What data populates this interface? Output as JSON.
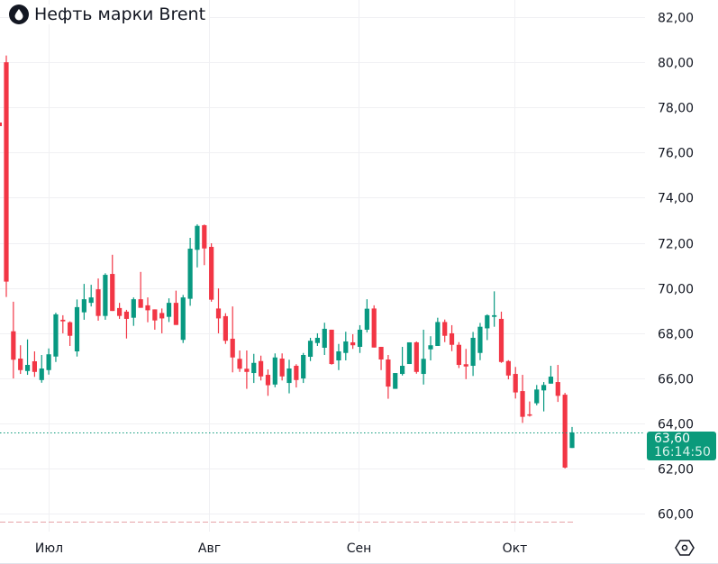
{
  "title": "Нефть марки Brent",
  "icons": {
    "title": "oil-drop-icon",
    "settings": "hexagon-settings-icon"
  },
  "last_price": {
    "value": "63,60",
    "countdown": "16:14:50"
  },
  "colors": {
    "up": "#089981",
    "down": "#f23645",
    "tag": "#0b9a7b",
    "grid": "#f0f0f3"
  },
  "chart_data": {
    "type": "candlestick",
    "title": "Нефть марки Brent",
    "ylim": [
      59.2,
      82.6
    ],
    "y_ticks": [
      60,
      62,
      64,
      66,
      68,
      70,
      72,
      74,
      76,
      78,
      80,
      82
    ],
    "y_tick_labels": [
      "60,00",
      "62,00",
      "64,00",
      "66,00",
      "68,00",
      "70,00",
      "72,00",
      "74,00",
      "76,00",
      "78,00",
      "80,00",
      "82,00"
    ],
    "x_labels": [
      {
        "label": "Июл",
        "index": 6
      },
      {
        "label": "Авг",
        "index": 28.7
      },
      {
        "label": "Сен",
        "index": 49.8
      },
      {
        "label": "Окт",
        "index": 71.8
      }
    ],
    "grid": true,
    "ohlc": [
      [
        80.0,
        80.3,
        69.6,
        70.28
      ],
      [
        68.08,
        69.39,
        65.99,
        66.82
      ],
      [
        66.87,
        67.46,
        66.19,
        66.36
      ],
      [
        66.32,
        67.72,
        66.15,
        66.59
      ],
      [
        66.75,
        67.19,
        66.06,
        66.28
      ],
      [
        65.92,
        67.03,
        65.8,
        66.43
      ],
      [
        66.36,
        67.32,
        66.16,
        67.06
      ],
      [
        66.96,
        68.9,
        66.72,
        68.83
      ],
      [
        68.59,
        68.79,
        67.99,
        68.52
      ],
      [
        68.48,
        68.52,
        67.43,
        67.88
      ],
      [
        67.19,
        69.49,
        66.96,
        69.15
      ],
      [
        68.92,
        70.18,
        68.59,
        69.5
      ],
      [
        69.34,
        70.14,
        69.18,
        69.58
      ],
      [
        69.94,
        70.42,
        68.55,
        68.76
      ],
      [
        68.76,
        70.65,
        68.59,
        70.58
      ],
      [
        70.62,
        71.47,
        68.98,
        68.98
      ],
      [
        69.11,
        69.34,
        68.63,
        68.76
      ],
      [
        68.95,
        69.03,
        67.76,
        68.63
      ],
      [
        68.68,
        69.58,
        68.32,
        69.5
      ],
      [
        69.5,
        70.71,
        69.12,
        69.12
      ],
      [
        69.23,
        69.58,
        68.48,
        69.01
      ],
      [
        69.05,
        69.05,
        68.15,
        68.56
      ],
      [
        68.89,
        69.09,
        67.99,
        68.65
      ],
      [
        68.72,
        69.54,
        68.49,
        69.34
      ],
      [
        69.34,
        69.88,
        68.36,
        68.36
      ],
      [
        67.7,
        69.69,
        67.56,
        69.58
      ],
      [
        69.52,
        72.22,
        69.21,
        71.74
      ],
      [
        71.69,
        72.82,
        70.91,
        72.75
      ],
      [
        72.78,
        72.81,
        71.01,
        71.75
      ],
      [
        71.82,
        71.98,
        69.39,
        69.48
      ],
      [
        69.09,
        69.98,
        67.99,
        68.65
      ],
      [
        68.75,
        68.88,
        67.52,
        67.66
      ],
      [
        67.75,
        69.18,
        66.26,
        66.92
      ],
      [
        66.86,
        67.23,
        66.28,
        66.42
      ],
      [
        66.42,
        67.23,
        65.53,
        66.28
      ],
      [
        66.23,
        67.08,
        65.79,
        66.68
      ],
      [
        66.76,
        67.0,
        65.9,
        66.08
      ],
      [
        66.15,
        66.39,
        65.22,
        65.69
      ],
      [
        65.72,
        67.1,
        65.6,
        66.92
      ],
      [
        66.87,
        67.1,
        65.9,
        66.08
      ],
      [
        65.79,
        66.82,
        65.33,
        66.43
      ],
      [
        66.55,
        66.62,
        65.59,
        65.92
      ],
      [
        65.99,
        67.12,
        65.79,
        67.03
      ],
      [
        66.95,
        67.79,
        66.76,
        67.66
      ],
      [
        67.56,
        67.99,
        67.43,
        67.79
      ],
      [
        67.35,
        68.46,
        67.03,
        68.19
      ],
      [
        68.15,
        68.15,
        66.6,
        66.63
      ],
      [
        66.79,
        67.52,
        66.36,
        67.19
      ],
      [
        67.12,
        68.06,
        66.79,
        67.63
      ],
      [
        67.59,
        67.95,
        67.3,
        67.46
      ],
      [
        67.39,
        68.35,
        67.12,
        68.15
      ],
      [
        68.15,
        69.5,
        68.03,
        69.08
      ],
      [
        69.09,
        69.23,
        67.36,
        67.36
      ],
      [
        67.39,
        67.39,
        66.36,
        66.83
      ],
      [
        66.83,
        67.03,
        65.09,
        65.63
      ],
      [
        65.53,
        66.23,
        65.53,
        66.23
      ],
      [
        66.19,
        67.39,
        66.12,
        66.55
      ],
      [
        66.63,
        67.59,
        66.63,
        67.59
      ],
      [
        67.59,
        67.63,
        66.2,
        66.28
      ],
      [
        66.19,
        68.15,
        65.72,
        66.86
      ],
      [
        67.28,
        67.86,
        66.79,
        67.46
      ],
      [
        67.43,
        68.68,
        67.43,
        68.49
      ],
      [
        68.49,
        68.6,
        67.6,
        67.88
      ],
      [
        67.99,
        68.35,
        67.2,
        67.48
      ],
      [
        67.48,
        67.6,
        66.45,
        66.59
      ],
      [
        66.62,
        67.3,
        65.96,
        66.52
      ],
      [
        66.55,
        68.05,
        66.1,
        67.79
      ],
      [
        67.12,
        68.45,
        66.8,
        68.28
      ],
      [
        68.21,
        68.83,
        67.69,
        68.79
      ],
      [
        68.72,
        69.85,
        68.28,
        68.79
      ],
      [
        68.63,
        68.95,
        66.68,
        66.72
      ],
      [
        66.76,
        66.8,
        65.95,
        66.12
      ],
      [
        66.19,
        66.5,
        65.1,
        65.37
      ],
      [
        65.43,
        66.15,
        64.02,
        64.29
      ],
      [
        64.4,
        64.97,
        64.3,
        64.36
      ],
      [
        64.89,
        65.7,
        64.8,
        65.5
      ],
      [
        65.46,
        65.83,
        64.53,
        65.7
      ],
      [
        65.76,
        66.55,
        65.76,
        66.07
      ],
      [
        65.83,
        66.59,
        64.95,
        65.22
      ],
      [
        65.27,
        65.35,
        62.0,
        62.04
      ],
      [
        62.91,
        63.84,
        62.91,
        63.6
      ]
    ]
  }
}
